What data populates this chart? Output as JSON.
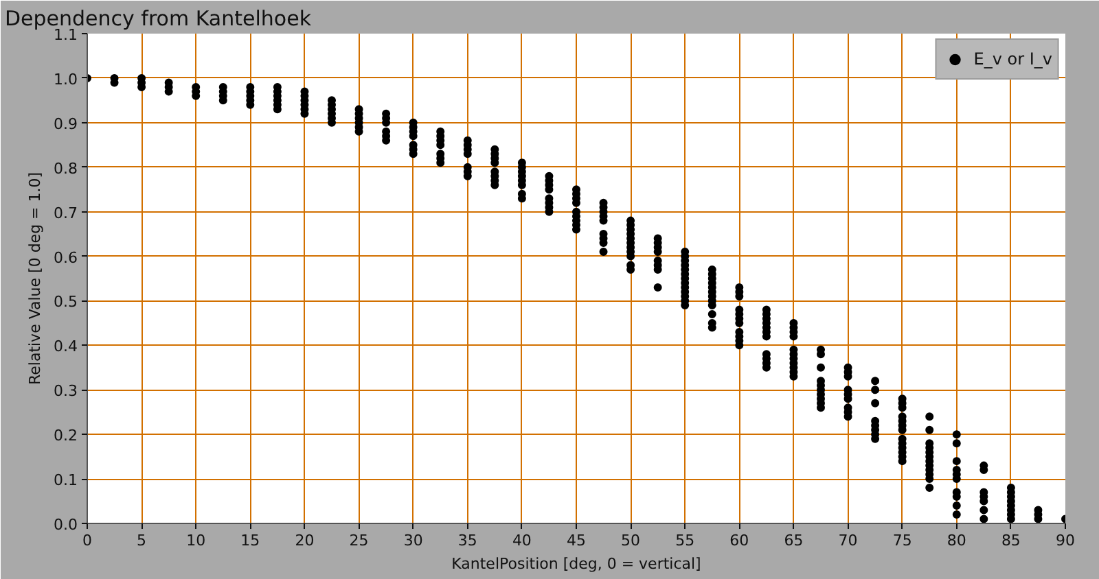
{
  "chart_data": {
    "type": "scatter",
    "title": "Dependency from Kantelhoek",
    "xlabel": "KantelPosition [deg, 0 = vertical]",
    "ylabel": "Relative Value [0 deg = 1.0]",
    "xlim": [
      0,
      90
    ],
    "xticks": [
      0,
      5,
      10,
      15,
      20,
      25,
      30,
      35,
      40,
      45,
      50,
      55,
      60,
      65,
      70,
      75,
      80,
      85,
      90
    ],
    "ylim": [
      0,
      1.1
    ],
    "yticks": [
      {
        "value": 0,
        "label": "0.0"
      },
      0.1,
      0.2,
      0.3,
      0.4,
      0.5,
      0.6,
      0.7,
      0.8,
      0.9,
      {
        "value": 1,
        "label": "1.0"
      },
      1.1
    ],
    "grid": true,
    "legend": "top right",
    "marker": "circle",
    "series": [
      {
        "name": "E_v or I_v",
        "color": "#000000",
        "x": [
          0,
          2.5,
          2.5,
          5,
          5,
          5,
          7.5,
          7.5,
          7.5,
          10,
          10,
          10,
          12.5,
          12.5,
          12.5,
          12.5,
          15,
          15,
          15,
          15,
          15,
          17.5,
          17.5,
          17.5,
          17.5,
          17.5,
          17.5,
          20,
          20,
          20,
          20,
          20,
          20,
          22.5,
          22.5,
          22.5,
          22.5,
          22.5,
          22.5,
          25,
          25,
          25,
          25,
          25,
          25,
          27.5,
          27.5,
          27.5,
          27.5,
          27.5,
          27.5,
          30,
          30,
          30,
          30,
          30,
          30,
          30,
          32.5,
          32.5,
          32.5,
          32.5,
          32.5,
          32.5,
          32.5,
          35,
          35,
          35,
          35,
          35,
          35,
          35,
          37.5,
          37.5,
          37.5,
          37.5,
          37.5,
          37.5,
          37.5,
          37.5,
          40,
          40,
          40,
          40,
          40,
          40,
          40,
          40,
          42.5,
          42.5,
          42.5,
          42.5,
          42.5,
          42.5,
          42.5,
          42.5,
          45,
          45,
          45,
          45,
          45,
          45,
          45,
          45,
          45,
          47.5,
          47.5,
          47.5,
          47.5,
          47.5,
          47.5,
          47.5,
          47.5,
          47.5,
          50,
          50,
          50,
          50,
          50,
          50,
          50,
          50,
          50,
          50,
          50,
          52.5,
          52.5,
          52.5,
          52.5,
          52.5,
          52.5,
          52.5,
          52.5,
          55,
          55,
          55,
          55,
          55,
          55,
          55,
          55,
          55,
          55,
          55,
          55,
          55,
          57.5,
          57.5,
          57.5,
          57.5,
          57.5,
          57.5,
          57.5,
          57.5,
          57.5,
          57.5,
          57.5,
          57.5,
          60,
          60,
          60,
          60,
          60,
          60,
          60,
          60,
          60,
          60,
          60,
          62.5,
          62.5,
          62.5,
          62.5,
          62.5,
          62.5,
          62.5,
          62.5,
          62.5,
          62.5,
          62.5,
          65,
          65,
          65,
          65,
          65,
          65,
          65,
          65,
          65,
          65,
          65,
          67.5,
          67.5,
          67.5,
          67.5,
          67.5,
          67.5,
          67.5,
          67.5,
          67.5,
          67.5,
          70,
          70,
          70,
          70,
          70,
          70,
          70,
          70,
          70,
          72.5,
          72.5,
          72.5,
          72.5,
          72.5,
          72.5,
          72.5,
          72.5,
          75,
          75,
          75,
          75,
          75,
          75,
          75,
          75,
          75,
          75,
          75,
          75,
          75,
          77.5,
          77.5,
          77.5,
          77.5,
          77.5,
          77.5,
          77.5,
          77.5,
          77.5,
          77.5,
          77.5,
          77.5,
          80,
          80,
          80,
          80,
          80,
          80,
          80,
          80,
          80,
          80,
          82.5,
          82.5,
          82.5,
          82.5,
          82.5,
          82.5,
          82.5,
          85,
          85,
          85,
          85,
          85,
          85,
          85,
          85,
          87.5,
          87.5,
          87.5,
          90
        ],
        "values": [
          1.0,
          0.99,
          1.0,
          0.98,
          0.99,
          1.0,
          0.97,
          0.98,
          0.99,
          0.96,
          0.97,
          0.98,
          0.95,
          0.96,
          0.97,
          0.98,
          0.94,
          0.95,
          0.96,
          0.97,
          0.98,
          0.93,
          0.94,
          0.95,
          0.96,
          0.97,
          0.98,
          0.92,
          0.93,
          0.94,
          0.95,
          0.96,
          0.97,
          0.9,
          0.91,
          0.92,
          0.93,
          0.94,
          0.95,
          0.88,
          0.89,
          0.9,
          0.91,
          0.92,
          0.93,
          0.86,
          0.87,
          0.88,
          0.9,
          0.91,
          0.92,
          0.83,
          0.84,
          0.85,
          0.87,
          0.88,
          0.89,
          0.9,
          0.81,
          0.82,
          0.83,
          0.85,
          0.86,
          0.87,
          0.88,
          0.78,
          0.79,
          0.8,
          0.83,
          0.84,
          0.85,
          0.86,
          0.76,
          0.77,
          0.78,
          0.79,
          0.81,
          0.82,
          0.83,
          0.84,
          0.73,
          0.74,
          0.76,
          0.77,
          0.78,
          0.79,
          0.8,
          0.81,
          0.7,
          0.71,
          0.72,
          0.73,
          0.75,
          0.76,
          0.77,
          0.78,
          0.66,
          0.67,
          0.68,
          0.69,
          0.7,
          0.72,
          0.73,
          0.74,
          0.75,
          0.61,
          0.63,
          0.64,
          0.65,
          0.68,
          0.69,
          0.7,
          0.71,
          0.72,
          0.57,
          0.58,
          0.6,
          0.61,
          0.62,
          0.63,
          0.64,
          0.65,
          0.66,
          0.67,
          0.68,
          0.53,
          0.57,
          0.58,
          0.59,
          0.61,
          0.62,
          0.63,
          0.64,
          0.49,
          0.5,
          0.51,
          0.52,
          0.53,
          0.54,
          0.55,
          0.56,
          0.57,
          0.58,
          0.59,
          0.6,
          0.61,
          0.44,
          0.45,
          0.47,
          0.49,
          0.5,
          0.51,
          0.52,
          0.53,
          0.54,
          0.55,
          0.56,
          0.57,
          0.4,
          0.41,
          0.42,
          0.43,
          0.45,
          0.46,
          0.47,
          0.48,
          0.51,
          0.52,
          0.53,
          0.35,
          0.36,
          0.37,
          0.38,
          0.42,
          0.43,
          0.44,
          0.45,
          0.46,
          0.47,
          0.48,
          0.33,
          0.34,
          0.35,
          0.36,
          0.37,
          0.38,
          0.39,
          0.42,
          0.43,
          0.44,
          0.45,
          0.26,
          0.27,
          0.28,
          0.29,
          0.3,
          0.31,
          0.32,
          0.35,
          0.38,
          0.39,
          0.24,
          0.25,
          0.26,
          0.28,
          0.29,
          0.3,
          0.33,
          0.34,
          0.35,
          0.19,
          0.2,
          0.21,
          0.22,
          0.23,
          0.27,
          0.3,
          0.32,
          0.14,
          0.15,
          0.16,
          0.17,
          0.18,
          0.19,
          0.21,
          0.22,
          0.23,
          0.24,
          0.26,
          0.27,
          0.28,
          0.08,
          0.1,
          0.11,
          0.12,
          0.13,
          0.14,
          0.15,
          0.16,
          0.17,
          0.18,
          0.21,
          0.24,
          0.02,
          0.04,
          0.06,
          0.07,
          0.1,
          0.11,
          0.12,
          0.14,
          0.18,
          0.2,
          0.01,
          0.03,
          0.05,
          0.06,
          0.07,
          0.12,
          0.13,
          0.01,
          0.02,
          0.03,
          0.04,
          0.05,
          0.06,
          0.07,
          0.08,
          0.01,
          0.02,
          0.03,
          0.01
        ]
      }
    ]
  }
}
